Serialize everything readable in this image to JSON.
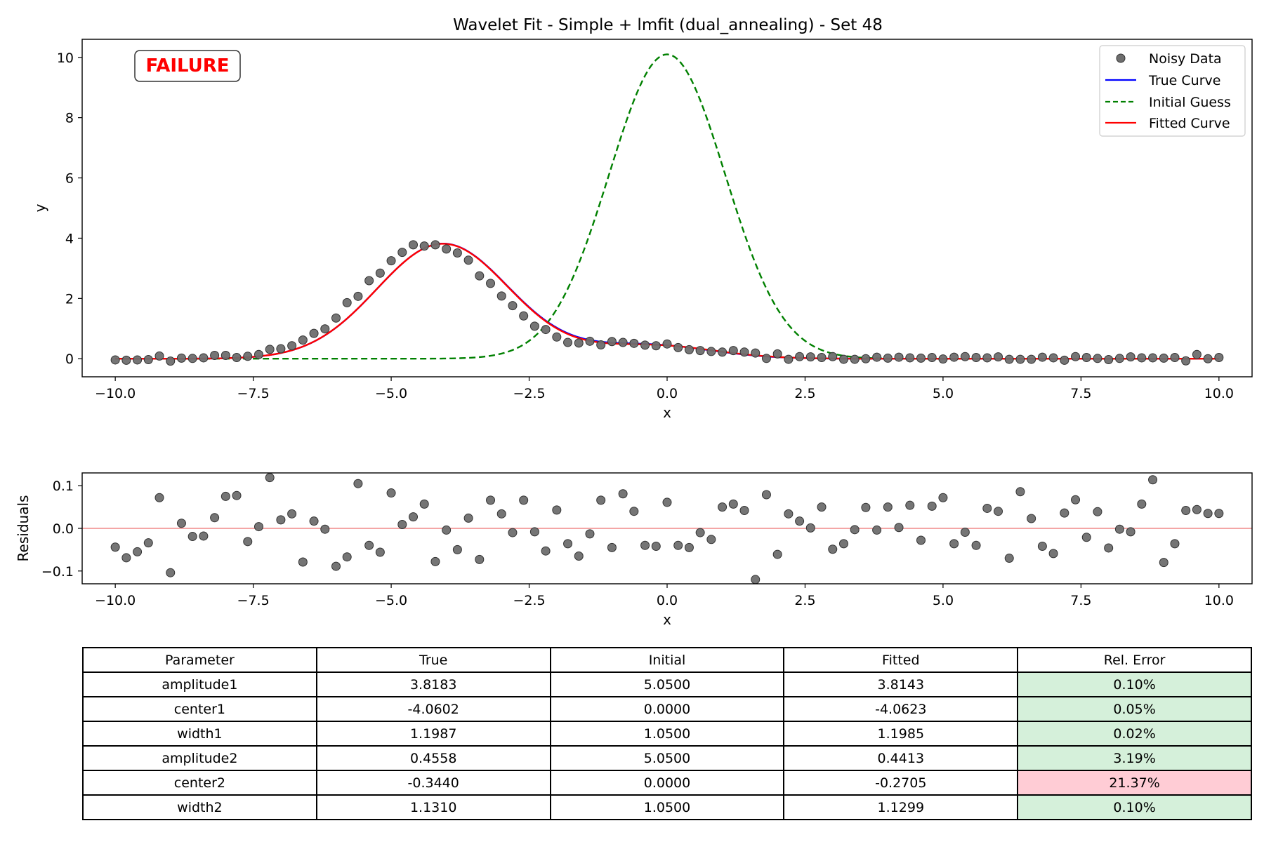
{
  "chart_data": [
    {
      "type": "line",
      "title": "Wavelet Fit - Simple + lmfit (dual_annealing) - Set 48",
      "xlabel": "x",
      "ylabel": "y",
      "xlim": [
        -10.6,
        10.6
      ],
      "ylim": [
        -0.6,
        10.6
      ],
      "xticks": [
        "−10.0",
        "−7.5",
        "−5.0",
        "−2.5",
        "0.0",
        "2.5",
        "5.0",
        "7.5",
        "10.0"
      ],
      "xtick_values": [
        -10,
        -7.5,
        -5,
        -2.5,
        0,
        2.5,
        5,
        7.5,
        10
      ],
      "yticks": [
        "0",
        "2",
        "4",
        "6",
        "8",
        "10"
      ],
      "ytick_values": [
        0,
        2,
        4,
        6,
        8,
        10
      ],
      "status_badge": "FAILURE",
      "legend": {
        "position": "upper right",
        "entries": [
          "Noisy Data",
          "True Curve",
          "Initial Guess",
          "Fitted Curve"
        ]
      },
      "colors": {
        "data": "#6e6e6e",
        "true": "#0000ff",
        "initial": "#008000",
        "fitted": "#ff0000",
        "badge": "#ff0000"
      },
      "series": [
        {
          "name": "Noisy Data",
          "style": "scatter",
          "x_range": [
            -10,
            10
          ],
          "n_points": 101,
          "y": [
            -0.04,
            -0.05,
            -0.04,
            -0.03,
            0.09,
            -0.08,
            0.02,
            0.01,
            0.03,
            0.11,
            0.11,
            0.04,
            0.08,
            0.14,
            0.31,
            0.33,
            0.43,
            0.62,
            0.84,
            0.99,
            1.35,
            1.86,
            2.07,
            2.59,
            2.84,
            3.25,
            3.53,
            3.78,
            3.74,
            3.78,
            3.64,
            3.51,
            3.27,
            2.75,
            2.5,
            2.08,
            1.76,
            1.42,
            1.08,
            0.97,
            0.72,
            0.54,
            0.52,
            0.58,
            0.46,
            0.57,
            0.54,
            0.51,
            0.45,
            0.43,
            0.49,
            0.37,
            0.3,
            0.27,
            0.24,
            0.22,
            0.27,
            0.22,
            0.19,
            0.01,
            0.16,
            -0.02,
            0.07,
            0.06,
            0.04,
            0.07,
            -0.02,
            -0.02,
            0.0,
            0.05,
            0.02,
            0.05,
            0.03,
            0.02,
            0.04,
            -0.01,
            0.05,
            0.07,
            0.04,
            0.03,
            0.06,
            -0.02,
            -0.02,
            -0.02,
            0.05,
            0.03,
            -0.05,
            0.07,
            0.04,
            0.01,
            -0.03,
            0.01,
            0.06,
            0.03,
            0.03,
            0.02,
            0.04,
            -0.07,
            0.14,
            0.0,
            0.04
          ]
        },
        {
          "name": "True Curve",
          "style": "line",
          "model": {
            "amplitude1": 3.8183,
            "center1": -4.0602,
            "width1": 1.1987,
            "amplitude2": 0.4558,
            "center2": -0.344,
            "width2": 1.131
          }
        },
        {
          "name": "Initial Guess",
          "style": "dashed",
          "model": {
            "amplitude1": 5.05,
            "center1": 0.0,
            "width1": 1.05,
            "amplitude2": 5.05,
            "center2": 0.0,
            "width2": 1.05
          }
        },
        {
          "name": "Fitted Curve",
          "style": "line",
          "model": {
            "amplitude1": 3.8143,
            "center1": -4.0623,
            "width1": 1.1985,
            "amplitude2": 0.4413,
            "center2": -0.2705,
            "width2": 1.1299
          }
        }
      ]
    },
    {
      "type": "scatter",
      "xlabel": "x",
      "ylabel": "Residuals",
      "xlim": [
        -10.6,
        10.6
      ],
      "ylim": [
        -0.13,
        0.13
      ],
      "xticks": [
        "−10.0",
        "−7.5",
        "−5.0",
        "−2.5",
        "0.0",
        "2.5",
        "5.0",
        "7.5",
        "10.0"
      ],
      "xtick_values": [
        -10,
        -7.5,
        -5,
        -2.5,
        0,
        2.5,
        5,
        7.5,
        10
      ],
      "yticks": [
        "−0.1",
        "0.0",
        "0.1"
      ],
      "ytick_values": [
        -0.1,
        0,
        0.1
      ],
      "reference_line": {
        "y": 0,
        "color": "#f4a6a6"
      },
      "series": [
        {
          "name": "Residuals",
          "x_range": [
            -10,
            10
          ],
          "n_points": 101,
          "y": [
            -0.044,
            -0.069,
            -0.055,
            -0.034,
            0.072,
            -0.104,
            0.012,
            -0.019,
            -0.018,
            0.025,
            0.075,
            0.077,
            -0.031,
            0.004,
            0.119,
            0.02,
            0.034,
            -0.079,
            0.017,
            -0.002,
            -0.089,
            -0.067,
            0.105,
            -0.04,
            -0.056,
            0.083,
            0.009,
            0.027,
            0.057,
            -0.078,
            -0.004,
            -0.05,
            0.024,
            -0.073,
            0.066,
            0.034,
            -0.01,
            0.066,
            -0.008,
            -0.053,
            0.043,
            -0.036,
            -0.065,
            -0.013,
            0.066,
            -0.045,
            0.081,
            0.04,
            -0.04,
            -0.042,
            0.061,
            -0.04,
            -0.045,
            -0.01,
            -0.026,
            0.05,
            0.057,
            0.042,
            -0.12,
            0.079,
            -0.061,
            0.034,
            0.017,
            0.001,
            0.05,
            -0.049,
            -0.036,
            -0.003,
            0.049,
            -0.004,
            0.05,
            0.002,
            0.054,
            -0.028,
            0.052,
            0.072,
            -0.036,
            -0.009,
            -0.04,
            0.047,
            0.04,
            -0.07,
            0.086,
            0.023,
            -0.042,
            -0.059,
            0.036,
            0.067,
            -0.021,
            0.039,
            -0.046,
            -0.002,
            -0.008,
            0.057,
            0.114,
            -0.08,
            -0.036,
            0.042,
            0.044,
            0.035,
            0.035
          ]
        }
      ]
    },
    {
      "type": "table",
      "columns": [
        "Parameter",
        "True",
        "Initial",
        "Fitted",
        "Rel. Error"
      ],
      "rows": [
        {
          "cells": [
            "amplitude1",
            "3.8183",
            "5.0500",
            "3.8143",
            "0.10%"
          ],
          "status": "ok"
        },
        {
          "cells": [
            "center1",
            "-4.0602",
            "0.0000",
            "-4.0623",
            "0.05%"
          ],
          "status": "ok"
        },
        {
          "cells": [
            "width1",
            "1.1987",
            "1.0500",
            "1.1985",
            "0.02%"
          ],
          "status": "ok"
        },
        {
          "cells": [
            "amplitude2",
            "0.4558",
            "5.0500",
            "0.4413",
            "3.19%"
          ],
          "status": "ok"
        },
        {
          "cells": [
            "center2",
            "-0.3440",
            "0.0000",
            "-0.2705",
            "21.37%"
          ],
          "status": "bad"
        },
        {
          "cells": [
            "width2",
            "1.1310",
            "1.0500",
            "1.1299",
            "0.10%"
          ],
          "status": "ok"
        }
      ],
      "status_colors": {
        "ok": "#d5f0da",
        "bad": "#ffccd5"
      }
    }
  ]
}
